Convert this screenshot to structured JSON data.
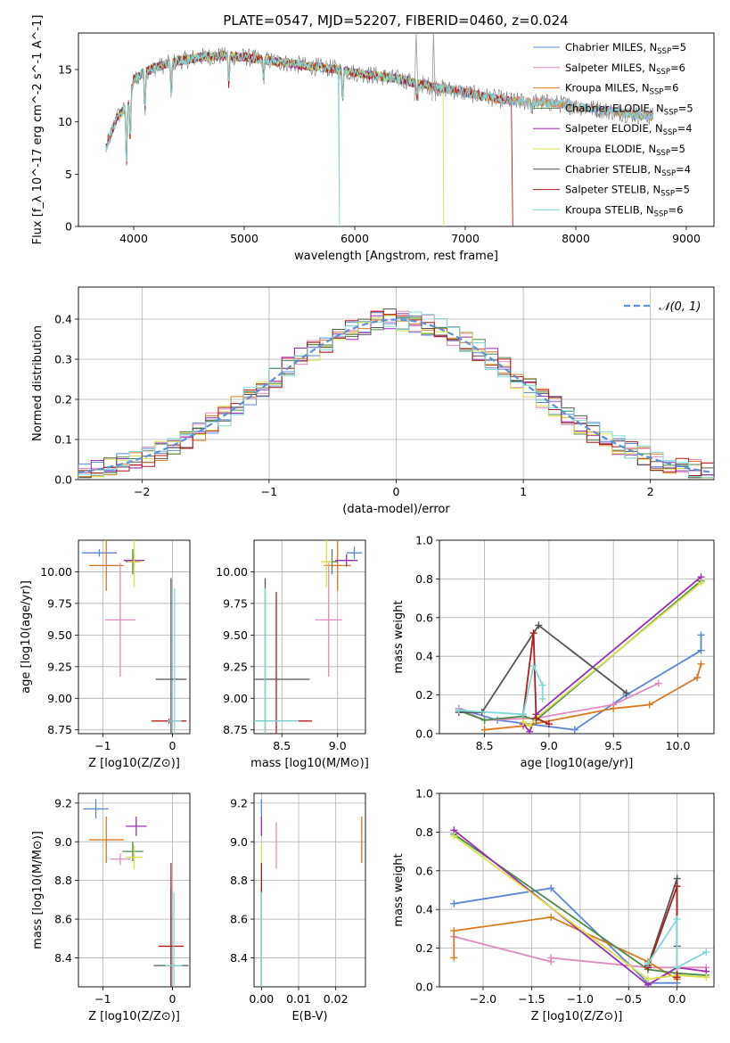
{
  "page_title": "PLATE=0547, MJD=52207, FIBERID=0460, z=0.024",
  "colors": {
    "Chabrier MILES": "#5b86d6",
    "Salpeter MILES": "#e08ac0",
    "Kroupa MILES": "#d97a20",
    "Chabrier ELODIE": "#4b8b4b",
    "Salpeter ELODIE": "#9a2fb0",
    "Kroupa ELODIE": "#d9e04a",
    "Chabrier STELIB": "#555555",
    "Salpeter STELIB": "#b01c1c",
    "Kroupa STELIB": "#7fd8d8"
  },
  "chart_data": [
    {
      "id": "spectrum",
      "type": "line",
      "title": "PLATE=0547, MJD=52207, FIBERID=0460, z=0.024",
      "xlabel": "wavelength [Angstrom, rest frame]",
      "ylabel": "Flux [f_λ 10^-17 erg cm^-2 s^-1 A^-1]",
      "xlim": [
        3500,
        9250
      ],
      "ylim": [
        0,
        18.5
      ],
      "xticks": [
        4000,
        5000,
        6000,
        7000,
        8000,
        9000
      ],
      "yticks": [
        0,
        5,
        10,
        15
      ],
      "legend_position": "top-right",
      "legend": [
        {
          "name": "Chabrier MILES",
          "nssp": "5"
        },
        {
          "name": "Salpeter MILES",
          "nssp": "6"
        },
        {
          "name": "Kroupa MILES",
          "nssp": "6"
        },
        {
          "name": "Chabrier ELODIE",
          "nssp": "5"
        },
        {
          "name": "Salpeter ELODIE",
          "nssp": "4"
        },
        {
          "name": "Kroupa ELODIE",
          "nssp": "5"
        },
        {
          "name": "Chabrier STELIB",
          "nssp": "4"
        },
        {
          "name": "Salpeter STELIB",
          "nssp": "5"
        },
        {
          "name": "Kroupa STELIB",
          "nssp": "6"
        }
      ],
      "spectrum_envelope": {
        "x": [
          3750,
          3800,
          3850,
          3900,
          3950,
          4000,
          4100,
          4200,
          4300,
          4400,
          4500,
          4600,
          4800,
          5000,
          5200,
          5400,
          5600,
          5800,
          6000,
          6200,
          6400,
          6600,
          6800,
          7000,
          7200,
          7400,
          7600,
          7800,
          8000,
          8200,
          8400,
          8600,
          8700
        ],
        "y": [
          7.5,
          9.0,
          10.5,
          11.0,
          11.5,
          14.0,
          14.8,
          15.2,
          15.5,
          15.8,
          16.0,
          16.2,
          16.3,
          16.2,
          15.9,
          15.6,
          15.3,
          15.1,
          14.7,
          14.4,
          14.1,
          13.6,
          13.2,
          12.8,
          12.4,
          12.0,
          11.9,
          11.8,
          11.5,
          11.2,
          10.9,
          10.6,
          10.5
        ]
      }
    },
    {
      "id": "residuals",
      "type": "line",
      "xlabel": "(data-model)/error",
      "ylabel": "Normed distribution",
      "xlim": [
        -2.5,
        2.5
      ],
      "ylim": [
        0,
        0.48
      ],
      "xticks": [
        -2,
        -1,
        0,
        1,
        2
      ],
      "yticks": [
        0.0,
        0.1,
        0.2,
        0.3,
        0.4
      ],
      "legend": [
        {
          "name": "𝒩(0, 1)"
        }
      ],
      "legend_position": "top-right"
    },
    {
      "id": "age-vs-Z",
      "type": "scatter",
      "xlabel": "Z [log10(Z/Z⊙)]",
      "ylabel": "age  [log10(age/yr)]",
      "xlim": [
        -1.35,
        0.25
      ],
      "ylim": [
        8.72,
        10.25
      ],
      "xticks": [
        -1,
        0
      ],
      "yticks": [
        8.75,
        9.0,
        9.25,
        9.5,
        9.75,
        10.0
      ],
      "points": [
        {
          "series": "Chabrier MILES",
          "x": -1.05,
          "y": 10.15,
          "xerr": 0.25,
          "yerr": 0.03
        },
        {
          "series": "Kroupa MILES",
          "x": -0.95,
          "y": 10.05,
          "xerr": 0.25,
          "yerr": 0.2
        },
        {
          "series": "Salpeter MILES",
          "x": -0.75,
          "y": 9.62,
          "xerr": 0.22,
          "yerr": 0.45
        },
        {
          "series": "Chabrier ELODIE",
          "x": -0.57,
          "y": 10.08,
          "xerr": 0.1,
          "yerr": 0.1
        },
        {
          "series": "Salpeter ELODIE",
          "x": -0.55,
          "y": 10.09,
          "xerr": 0.15,
          "yerr": 0.05
        },
        {
          "series": "Kroupa ELODIE",
          "x": -0.55,
          "y": 10.08,
          "xerr": 0.1,
          "yerr": 0.2
        },
        {
          "series": "Chabrier STELIB",
          "x": -0.02,
          "y": 9.15,
          "xerr": 0.22,
          "yerr": 0.8
        },
        {
          "series": "Salpeter STELIB",
          "x": -0.05,
          "y": 8.82,
          "xerr": 0.25,
          "yerr": 0.02
        },
        {
          "series": "Kroupa STELIB",
          "x": 0.03,
          "y": 8.82,
          "xerr": 0.1,
          "yerr": 1.05
        }
      ]
    },
    {
      "id": "age-vs-mass",
      "type": "scatter",
      "xlabel": "mass [log10(M/M⊙)]",
      "ylabel": "",
      "xlim": [
        8.25,
        9.25
      ],
      "ylim": [
        8.72,
        10.25
      ],
      "xticks": [
        8.5,
        9.0
      ],
      "yticks": [
        8.75,
        9.0,
        9.25,
        9.5,
        9.75,
        10.0
      ],
      "points": [
        {
          "series": "Chabrier MILES",
          "x": 9.15,
          "y": 10.15,
          "xerr": 0.07,
          "yerr": 0.05
        },
        {
          "series": "Kroupa MILES",
          "x": 9.0,
          "y": 10.05,
          "xerr": 0.12,
          "yerr": 0.2
        },
        {
          "series": "Salpeter MILES",
          "x": 8.92,
          "y": 9.62,
          "xerr": 0.12,
          "yerr": 0.45
        },
        {
          "series": "Chabrier ELODIE",
          "x": 8.95,
          "y": 10.08,
          "xerr": 0.05,
          "yerr": 0.1
        },
        {
          "series": "Salpeter ELODIE",
          "x": 9.08,
          "y": 10.09,
          "xerr": 0.1,
          "yerr": 0.05
        },
        {
          "series": "Kroupa ELODIE",
          "x": 8.9,
          "y": 10.08,
          "xerr": 0.05,
          "yerr": 0.2
        },
        {
          "series": "Chabrier STELIB",
          "x": 8.35,
          "y": 9.15,
          "xerr": 0.4,
          "yerr": 0.8
        },
        {
          "series": "Salpeter STELIB",
          "x": 8.45,
          "y": 8.82,
          "xerr": 0.32,
          "yerr": 1.02
        },
        {
          "series": "Kroupa STELIB",
          "x": 8.35,
          "y": 8.82,
          "xerr": 0.3,
          "yerr": 1.05
        }
      ]
    },
    {
      "id": "massweight-vs-age",
      "type": "line",
      "xlabel": "age  [log10(age/yr)]",
      "ylabel": "mass weight",
      "xlim": [
        8.15,
        10.28
      ],
      "ylim": [
        0,
        1.0
      ],
      "xticks": [
        8.5,
        9.0,
        9.5,
        10.0
      ],
      "yticks": [
        0.0,
        0.2,
        0.4,
        0.6,
        0.8,
        1.0
      ],
      "series": [
        {
          "name": "Chabrier MILES",
          "x": [
            8.3,
            8.6,
            9.2,
            9.6,
            10.18,
            10.18
          ],
          "y": [
            0.13,
            0.07,
            0.02,
            0.2,
            0.43,
            0.51
          ]
        },
        {
          "name": "Salpeter MILES",
          "x": [
            8.3,
            8.5,
            8.9,
            9.5,
            9.85
          ],
          "y": [
            0.13,
            0.07,
            0.08,
            0.15,
            0.26
          ]
        },
        {
          "name": "Kroupa MILES",
          "x": [
            8.5,
            8.8,
            9.5,
            9.78,
            10.15,
            10.18
          ],
          "y": [
            0.02,
            0.04,
            0.13,
            0.15,
            0.29,
            0.36
          ]
        },
        {
          "name": "Chabrier ELODIE",
          "x": [
            8.3,
            8.5,
            8.8,
            8.9,
            10.18
          ],
          "y": [
            0.12,
            0.07,
            0.09,
            0.07,
            0.79
          ]
        },
        {
          "name": "Salpeter ELODIE",
          "x": [
            8.8,
            8.85,
            8.9,
            10.18
          ],
          "y": [
            0.05,
            0.01,
            0.1,
            0.81
          ]
        },
        {
          "name": "Kroupa ELODIE",
          "x": [
            8.8,
            8.85,
            8.9,
            10.18
          ],
          "y": [
            0.06,
            0.04,
            0.08,
            0.78
          ]
        },
        {
          "name": "Chabrier STELIB",
          "x": [
            8.3,
            8.48,
            8.92,
            9.6
          ],
          "y": [
            0.11,
            0.11,
            0.56,
            0.21
          ]
        },
        {
          "name": "Salpeter STELIB",
          "x": [
            8.8,
            8.88,
            8.9,
            9.0
          ],
          "y": [
            0.1,
            0.52,
            0.08,
            0.05
          ]
        },
        {
          "name": "Kroupa STELIB",
          "x": [
            8.3,
            8.8,
            8.88,
            8.95,
            8.95
          ],
          "y": [
            0.12,
            0.1,
            0.35,
            0.25,
            0.18
          ]
        }
      ]
    },
    {
      "id": "mass-vs-Z",
      "type": "scatter",
      "xlabel": "Z [log10(Z/Z⊙)]",
      "ylabel": "mass [log10(M/M⊙)]",
      "xlim": [
        -1.35,
        0.25
      ],
      "ylim": [
        8.25,
        9.25
      ],
      "xticks": [
        -1,
        0
      ],
      "yticks": [
        8.4,
        8.6,
        8.8,
        9.0,
        9.2
      ],
      "points": [
        {
          "series": "Chabrier MILES",
          "x": -1.1,
          "y": 9.17,
          "xerr": 0.18,
          "yerr": 0.05
        },
        {
          "series": "Kroupa MILES",
          "x": -0.95,
          "y": 9.01,
          "xerr": 0.25,
          "yerr": 0.12
        },
        {
          "series": "Salpeter MILES",
          "x": -0.75,
          "y": 8.91,
          "xerr": 0.15,
          "yerr": 0.03
        },
        {
          "series": "Chabrier ELODIE",
          "x": -0.57,
          "y": 8.95,
          "xerr": 0.15,
          "yerr": 0.05
        },
        {
          "series": "Salpeter ELODIE",
          "x": -0.52,
          "y": 9.08,
          "xerr": 0.15,
          "yerr": 0.05
        },
        {
          "series": "Kroupa ELODIE",
          "x": -0.55,
          "y": 8.92,
          "xerr": 0.12,
          "yerr": 0.06
        },
        {
          "series": "Chabrier STELIB",
          "x": -0.02,
          "y": 8.36,
          "xerr": 0.25,
          "yerr": 0.4
        },
        {
          "series": "Salpeter STELIB",
          "x": -0.02,
          "y": 8.46,
          "xerr": 0.18,
          "yerr": 0.43
        },
        {
          "series": "Kroupa STELIB",
          "x": 0.02,
          "y": 8.36,
          "xerr": 0.12,
          "yerr": 0.38
        }
      ]
    },
    {
      "id": "mass-vs-EBV",
      "type": "scatter",
      "xlabel": "E(B-V)",
      "ylabel": "",
      "xlim": [
        -0.002,
        0.028
      ],
      "ylim": [
        8.25,
        9.25
      ],
      "xticks": [
        0.0,
        0.01,
        0.02
      ],
      "yticks": [
        8.4,
        8.6,
        8.8,
        9.0,
        9.2
      ],
      "points": [
        {
          "series": "Chabrier MILES",
          "x": 0.0,
          "y": 9.17,
          "yerr": 0.05
        },
        {
          "series": "Salpeter MILES",
          "x": 0.004,
          "y": 8.98,
          "yerr": 0.12
        },
        {
          "series": "Kroupa MILES",
          "x": 0.027,
          "y": 9.01,
          "yerr": 0.12
        },
        {
          "series": "Salpeter ELODIE",
          "x": 0.0,
          "y": 9.08,
          "yerr": 0.05
        },
        {
          "series": "Kroupa ELODIE",
          "x": 0.0,
          "y": 8.93,
          "yerr": 0.06
        },
        {
          "series": "Chabrier STELIB",
          "x": 0.0,
          "y": 8.36,
          "yerr": 0.4
        },
        {
          "series": "Salpeter STELIB",
          "x": 0.0,
          "y": 8.46,
          "yerr": 0.43
        },
        {
          "series": "Kroupa STELIB",
          "x": 0.0,
          "y": 8.36,
          "yerr": 0.38
        }
      ]
    },
    {
      "id": "massweight-vs-Z",
      "type": "line",
      "xlabel": "Z [log10(Z/Z⊙)]",
      "ylabel": "mass weight",
      "xlim": [
        -2.45,
        0.38
      ],
      "ylim": [
        0,
        1.0
      ],
      "xticks": [
        -2.0,
        -1.5,
        -1.0,
        -0.5,
        0.0
      ],
      "yticks": [
        0.0,
        0.2,
        0.4,
        0.6,
        0.8,
        1.0
      ],
      "series": [
        {
          "name": "Chabrier MILES",
          "x": [
            -2.3,
            -1.3,
            -0.3,
            0.0
          ],
          "y": [
            0.43,
            0.51,
            0.02,
            0.02
          ]
        },
        {
          "name": "Salpeter MILES",
          "x": [
            -2.3,
            -1.3,
            -1.3,
            -0.3,
            0.3
          ],
          "y": [
            0.26,
            0.13,
            0.15,
            0.1,
            0.1
          ]
        },
        {
          "name": "Kroupa MILES",
          "x": [
            -2.3,
            -2.3,
            -1.3,
            -0.3,
            0.0
          ],
          "y": [
            0.15,
            0.29,
            0.36,
            0.13,
            0.04
          ]
        },
        {
          "name": "Chabrier ELODIE",
          "x": [
            -2.3,
            -0.3,
            0.0,
            0.3
          ],
          "y": [
            0.79,
            0.09,
            0.07,
            0.06
          ]
        },
        {
          "name": "Salpeter ELODIE",
          "x": [
            -2.3,
            -0.3,
            0.0,
            0.3
          ],
          "y": [
            0.81,
            0.01,
            0.1,
            0.08
          ]
        },
        {
          "name": "Kroupa ELODIE",
          "x": [
            -2.3,
            -0.3,
            0.0,
            0.3
          ],
          "y": [
            0.78,
            0.04,
            0.06,
            0.05
          ]
        },
        {
          "name": "Chabrier STELIB",
          "x": [
            -0.3,
            -0.3,
            0.0,
            0.0
          ],
          "y": [
            0.11,
            0.11,
            0.56,
            0.21
          ]
        },
        {
          "name": "Salpeter STELIB",
          "x": [
            -0.3,
            0.0,
            0.0
          ],
          "y": [
            0.1,
            0.52,
            0.05
          ]
        },
        {
          "name": "Kroupa STELIB",
          "x": [
            -0.3,
            0.0,
            0.0,
            0.3
          ],
          "y": [
            0.12,
            0.35,
            0.1,
            0.18
          ]
        }
      ]
    }
  ]
}
